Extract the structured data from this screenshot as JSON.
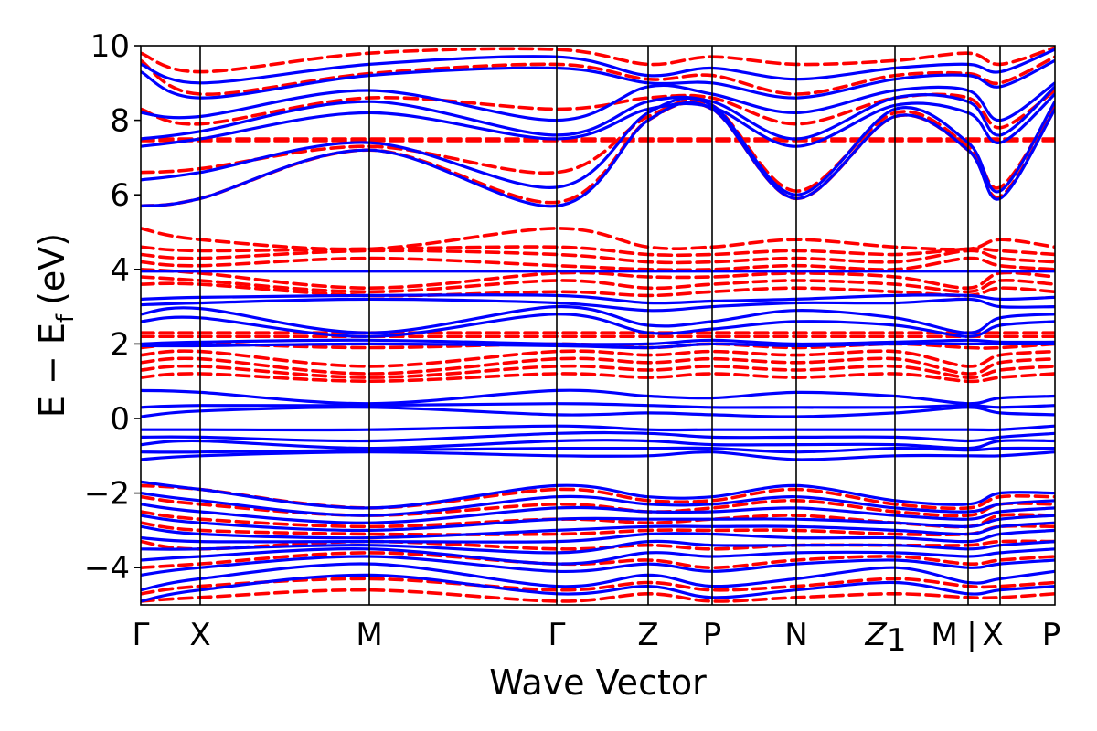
{
  "chart_data": {
    "type": "line",
    "title": "",
    "xlabel": "Wave Vector",
    "ylabel": "E − E",
    "ylabel_sub": "f",
    "ylabel_unit": "(eV)",
    "ylim": [
      -5,
      10
    ],
    "yticks": [
      -4,
      -2,
      0,
      2,
      4,
      6,
      8,
      10
    ],
    "grid": false,
    "legend": "none",
    "kpoints": [
      {
        "label": "Γ",
        "x": 0.0
      },
      {
        "label": "X",
        "x": 0.65
      },
      {
        "label": "M",
        "x": 2.5
      },
      {
        "label": "Γ",
        "x": 4.55
      },
      {
        "label": "Z",
        "x": 5.55
      },
      {
        "label": "P",
        "x": 6.25
      },
      {
        "label": "N",
        "x": 7.17
      },
      {
        "label": "Z",
        "label_sub": "1",
        "x": 8.25
      },
      {
        "label": "M",
        "x": 9.05
      },
      {
        "label": "|",
        "x": 9.05
      },
      {
        "label": "X",
        "x": 9.4
      },
      {
        "label": "P",
        "x": 10.0
      }
    ],
    "colors": {
      "series_a": "#0000ff",
      "series_b": "#ff0000"
    },
    "series": [
      {
        "style": "solid",
        "color": "#0000ff",
        "x": [
          0.0,
          0.65,
          2.5,
          4.55,
          5.55,
          6.25,
          7.17,
          8.25,
          9.05,
          9.4,
          10.0
        ],
        "bands": [
          [
            -4.9,
            -4.6,
            -4.2,
            -4.7,
            -4.5,
            -4.8,
            -4.6,
            -4.4,
            -4.7,
            -4.6,
            -4.5
          ],
          [
            -4.6,
            -4.3,
            -3.9,
            -4.5,
            -4.2,
            -4.5,
            -4.3,
            -4.0,
            -4.4,
            -4.3,
            -4.1
          ],
          [
            -4.2,
            -4.0,
            -3.7,
            -4.1,
            -3.9,
            -4.1,
            -3.9,
            -3.8,
            -4.0,
            -3.9,
            -3.8
          ],
          [
            -3.8,
            -3.7,
            -3.5,
            -3.9,
            -3.6,
            -3.7,
            -3.6,
            -3.6,
            -3.7,
            -3.6,
            -3.5
          ],
          [
            -3.5,
            -3.5,
            -3.4,
            -3.6,
            -3.3,
            -3.4,
            -3.4,
            -3.4,
            -3.5,
            -3.4,
            -3.3
          ],
          [
            -3.2,
            -3.3,
            -3.3,
            -3.3,
            -3.1,
            -3.1,
            -3.2,
            -3.2,
            -3.3,
            -3.1,
            -3.0
          ],
          [
            -2.9,
            -3.1,
            -3.2,
            -3.0,
            -2.9,
            -2.9,
            -2.9,
            -3.0,
            -3.1,
            -2.9,
            -2.8
          ],
          [
            -2.6,
            -2.8,
            -3.0,
            -2.7,
            -2.7,
            -2.7,
            -2.7,
            -2.8,
            -2.9,
            -2.7,
            -2.6
          ],
          [
            -2.3,
            -2.5,
            -2.8,
            -2.4,
            -2.5,
            -2.5,
            -2.4,
            -2.6,
            -2.7,
            -2.5,
            -2.4
          ],
          [
            -2.0,
            -2.2,
            -2.6,
            -2.1,
            -2.3,
            -2.3,
            -2.1,
            -2.4,
            -2.5,
            -2.3,
            -2.2
          ],
          [
            -1.7,
            -1.9,
            -2.4,
            -1.8,
            -2.1,
            -2.1,
            -1.8,
            -2.2,
            -2.3,
            -2.0,
            -2.0
          ],
          [
            -1.1,
            -1.0,
            -0.9,
            -1.0,
            -1.0,
            -0.9,
            -1.1,
            -1.0,
            -1.0,
            -1.0,
            -0.9
          ],
          [
            -0.9,
            -0.9,
            -0.85,
            -0.8,
            -0.8,
            -0.8,
            -0.9,
            -0.8,
            -0.85,
            -0.8,
            -0.8
          ],
          [
            -0.7,
            -0.6,
            -0.8,
            -0.6,
            -0.6,
            -0.7,
            -0.7,
            -0.7,
            -0.8,
            -0.6,
            -0.6
          ],
          [
            -0.5,
            -0.5,
            -0.6,
            -0.4,
            -0.4,
            -0.5,
            -0.5,
            -0.5,
            -0.6,
            -0.5,
            -0.4
          ],
          [
            -0.3,
            -0.3,
            -0.3,
            -0.2,
            -0.3,
            -0.3,
            -0.3,
            -0.3,
            -0.3,
            -0.3,
            -0.2
          ],
          [
            0.05,
            0.2,
            0.3,
            0.1,
            0.15,
            0.1,
            0.05,
            0.15,
            0.3,
            0.15,
            0.1
          ],
          [
            0.3,
            0.35,
            0.35,
            0.4,
            0.35,
            0.3,
            0.3,
            0.3,
            0.35,
            0.3,
            0.35
          ],
          [
            0.75,
            0.7,
            0.4,
            0.75,
            0.6,
            0.55,
            0.7,
            0.6,
            0.4,
            0.55,
            0.6
          ],
          [
            1.95,
            1.95,
            2.0,
            1.95,
            1.9,
            2.0,
            1.95,
            2.0,
            2.0,
            2.0,
            2.0
          ],
          [
            2.0,
            2.05,
            2.1,
            2.0,
            2.0,
            2.1,
            2.0,
            2.05,
            2.1,
            2.05,
            2.05
          ],
          [
            2.6,
            2.7,
            2.2,
            2.8,
            2.3,
            2.4,
            2.6,
            2.5,
            2.2,
            2.5,
            2.6
          ],
          [
            2.8,
            2.95,
            2.3,
            3.0,
            2.5,
            2.6,
            2.9,
            2.7,
            2.3,
            2.7,
            2.8
          ],
          [
            3.05,
            3.1,
            3.2,
            3.1,
            2.9,
            3.0,
            3.1,
            3.1,
            3.2,
            3.0,
            3.0
          ],
          [
            3.2,
            3.25,
            3.3,
            3.3,
            3.1,
            3.15,
            3.2,
            3.3,
            3.3,
            3.2,
            3.25
          ],
          [
            3.95,
            3.95,
            3.95,
            3.95,
            3.95,
            3.95,
            3.95,
            3.95,
            3.95,
            3.95,
            3.95
          ],
          [
            5.7,
            5.9,
            7.2,
            5.7,
            8.0,
            8.3,
            5.9,
            8.1,
            7.2,
            5.9,
            8.3
          ],
          [
            6.4,
            6.6,
            7.4,
            6.2,
            8.2,
            8.4,
            6.0,
            8.3,
            7.4,
            6.1,
            8.5
          ],
          [
            7.3,
            7.5,
            8.2,
            7.5,
            8.3,
            8.35,
            7.3,
            8.4,
            8.2,
            7.4,
            8.7
          ],
          [
            7.5,
            7.7,
            8.5,
            7.6,
            8.5,
            8.5,
            7.5,
            8.6,
            8.5,
            7.6,
            8.9
          ],
          [
            8.2,
            8.1,
            8.8,
            8.0,
            8.9,
            8.7,
            8.2,
            8.8,
            8.8,
            8.0,
            9.0
          ],
          [
            9.3,
            8.6,
            9.2,
            9.4,
            9.0,
            9.0,
            8.6,
            9.1,
            9.2,
            8.9,
            9.6
          ],
          [
            9.5,
            9.0,
            9.5,
            9.7,
            9.2,
            9.4,
            9.1,
            9.4,
            9.5,
            9.3,
            9.9
          ]
        ]
      },
      {
        "style": "dashed",
        "color": "#ff0000",
        "x": [
          0.0,
          0.65,
          2.5,
          4.55,
          5.55,
          6.25,
          7.17,
          8.25,
          9.05,
          9.4,
          10.0
        ],
        "bands": [
          [
            -4.9,
            -4.8,
            -4.6,
            -4.9,
            -4.7,
            -4.9,
            -4.8,
            -4.7,
            -4.8,
            -4.8,
            -4.7
          ],
          [
            -4.7,
            -4.5,
            -4.3,
            -4.6,
            -4.4,
            -4.6,
            -4.5,
            -4.3,
            -4.5,
            -4.5,
            -4.4
          ],
          [
            -4.0,
            -3.9,
            -3.6,
            -3.9,
            -3.8,
            -4.0,
            -3.8,
            -3.7,
            -3.9,
            -3.8,
            -3.7
          ],
          [
            -3.3,
            -3.5,
            -3.3,
            -3.5,
            -3.4,
            -3.5,
            -3.4,
            -3.4,
            -3.4,
            -3.3,
            -3.3
          ],
          [
            -2.8,
            -3.0,
            -3.1,
            -3.1,
            -3.0,
            -3.0,
            -3.0,
            -3.1,
            -3.1,
            -2.9,
            -2.9
          ],
          [
            -2.5,
            -2.7,
            -2.9,
            -2.7,
            -2.8,
            -2.7,
            -2.6,
            -2.8,
            -2.9,
            -2.6,
            -2.6
          ],
          [
            -2.1,
            -2.3,
            -2.6,
            -2.3,
            -2.5,
            -2.4,
            -2.2,
            -2.5,
            -2.6,
            -2.3,
            -2.3
          ],
          [
            -1.8,
            -1.9,
            -2.4,
            -1.9,
            -2.2,
            -2.2,
            -1.9,
            -2.3,
            -2.4,
            -2.1,
            -2.1
          ],
          [
            1.1,
            1.2,
            1.0,
            1.2,
            1.1,
            1.2,
            1.1,
            1.2,
            1.0,
            1.1,
            1.2
          ],
          [
            1.3,
            1.4,
            1.1,
            1.4,
            1.3,
            1.4,
            1.3,
            1.4,
            1.1,
            1.3,
            1.4
          ],
          [
            1.5,
            1.6,
            1.2,
            1.6,
            1.5,
            1.6,
            1.5,
            1.6,
            1.2,
            1.5,
            1.6
          ],
          [
            1.7,
            1.8,
            1.4,
            1.8,
            1.7,
            1.8,
            1.7,
            1.8,
            1.4,
            1.7,
            1.8
          ],
          [
            1.9,
            2.0,
            1.9,
            2.0,
            1.9,
            2.0,
            1.9,
            2.0,
            1.9,
            1.9,
            2.0
          ],
          [
            2.2,
            2.2,
            2.2,
            2.2,
            2.2,
            2.2,
            2.2,
            2.2,
            2.2,
            2.2,
            2.2
          ],
          [
            2.3,
            2.3,
            2.3,
            2.3,
            2.3,
            2.3,
            2.3,
            2.3,
            2.3,
            2.3,
            2.3
          ],
          [
            3.6,
            3.6,
            3.3,
            3.4,
            3.3,
            3.4,
            3.5,
            3.4,
            3.3,
            3.5,
            3.4
          ],
          [
            3.8,
            3.7,
            3.4,
            3.7,
            3.5,
            3.6,
            3.7,
            3.6,
            3.4,
            3.7,
            3.6
          ],
          [
            4.0,
            3.9,
            3.5,
            3.9,
            3.8,
            3.8,
            3.9,
            3.8,
            3.5,
            3.9,
            3.8
          ],
          [
            4.2,
            4.1,
            4.3,
            4.1,
            4.0,
            4.0,
            4.1,
            4.0,
            4.3,
            4.1,
            4.0
          ],
          [
            4.4,
            4.3,
            4.5,
            4.4,
            4.2,
            4.2,
            4.3,
            4.2,
            4.5,
            4.3,
            4.2
          ],
          [
            4.6,
            4.5,
            4.55,
            4.6,
            4.4,
            4.4,
            4.5,
            4.4,
            4.55,
            4.5,
            4.4
          ],
          [
            5.1,
            4.8,
            4.55,
            5.1,
            4.6,
            4.6,
            4.8,
            4.6,
            4.55,
            4.8,
            4.6
          ],
          [
            5.7,
            5.9,
            7.2,
            5.8,
            8.0,
            8.3,
            5.9,
            8.1,
            7.2,
            5.95,
            8.3
          ],
          [
            6.6,
            6.7,
            7.3,
            6.6,
            8.1,
            8.4,
            6.1,
            8.2,
            7.3,
            6.2,
            8.4
          ],
          [
            7.45,
            7.45,
            7.45,
            7.45,
            7.45,
            7.45,
            7.45,
            7.45,
            7.45,
            7.45,
            7.45
          ],
          [
            7.5,
            7.5,
            7.5,
            7.5,
            7.5,
            7.5,
            7.5,
            7.5,
            7.5,
            7.5,
            7.5
          ],
          [
            8.3,
            7.9,
            8.6,
            8.3,
            8.6,
            8.6,
            7.9,
            8.6,
            8.6,
            7.8,
            8.8
          ],
          [
            9.6,
            8.7,
            9.25,
            9.5,
            9.1,
            9.2,
            8.7,
            9.2,
            9.25,
            9.0,
            9.7
          ],
          [
            9.8,
            9.3,
            9.8,
            9.9,
            9.5,
            9.7,
            9.5,
            9.6,
            9.8,
            9.5,
            9.95
          ]
        ]
      }
    ]
  }
}
